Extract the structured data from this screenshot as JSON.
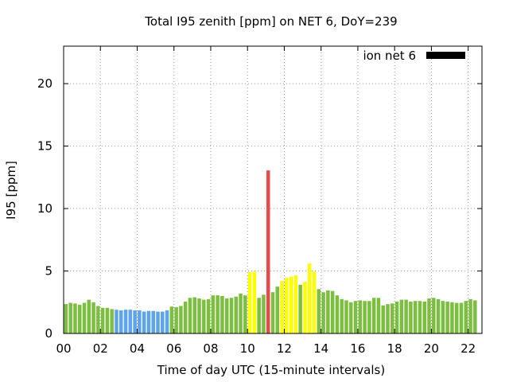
{
  "chart_data": {
    "type": "bar",
    "title": "Total I95 zenith [ppm] on NET 6, DoY=239",
    "xlabel": "Time of day UTC (15-minute intervals)",
    "ylabel": "I95 [ppm]",
    "legend": {
      "label": "ion net 6",
      "color": "#000000",
      "placement": "top-right"
    },
    "xlim": [
      0,
      22.75
    ],
    "ylim": [
      0,
      23
    ],
    "grid": true,
    "x_tick_labels": [
      "00",
      "02",
      "04",
      "06",
      "08",
      "10",
      "12",
      "14",
      "16",
      "18",
      "20",
      "22"
    ],
    "x_tick_values": [
      0,
      2,
      4,
      6,
      8,
      10,
      12,
      14,
      16,
      18,
      20,
      22
    ],
    "y_ticks": [
      0,
      5,
      10,
      15,
      20
    ],
    "bar_interval_hours": 0.25,
    "colors": {
      "green": "#7cbf40",
      "blue": "#5ea4ea",
      "yellow": "#ffff00",
      "red": "#e84a4a"
    },
    "bars": [
      {
        "x": 0.0,
        "y": 2.35,
        "c": "green"
      },
      {
        "x": 0.25,
        "y": 2.45,
        "c": "green"
      },
      {
        "x": 0.5,
        "y": 2.4,
        "c": "green"
      },
      {
        "x": 0.75,
        "y": 2.3,
        "c": "green"
      },
      {
        "x": 1.0,
        "y": 2.45,
        "c": "green"
      },
      {
        "x": 1.25,
        "y": 2.7,
        "c": "green"
      },
      {
        "x": 1.5,
        "y": 2.5,
        "c": "green"
      },
      {
        "x": 1.75,
        "y": 2.2,
        "c": "green"
      },
      {
        "x": 2.0,
        "y": 2.05,
        "c": "green"
      },
      {
        "x": 2.25,
        "y": 2.05,
        "c": "green"
      },
      {
        "x": 2.5,
        "y": 1.95,
        "c": "green"
      },
      {
        "x": 2.75,
        "y": 1.9,
        "c": "blue"
      },
      {
        "x": 3.0,
        "y": 1.85,
        "c": "blue"
      },
      {
        "x": 3.25,
        "y": 1.9,
        "c": "blue"
      },
      {
        "x": 3.5,
        "y": 1.9,
        "c": "blue"
      },
      {
        "x": 3.75,
        "y": 1.85,
        "c": "blue"
      },
      {
        "x": 4.0,
        "y": 1.85,
        "c": "blue"
      },
      {
        "x": 4.25,
        "y": 1.75,
        "c": "blue"
      },
      {
        "x": 4.5,
        "y": 1.8,
        "c": "blue"
      },
      {
        "x": 4.75,
        "y": 1.8,
        "c": "blue"
      },
      {
        "x": 5.0,
        "y": 1.75,
        "c": "blue"
      },
      {
        "x": 5.25,
        "y": 1.75,
        "c": "blue"
      },
      {
        "x": 5.5,
        "y": 1.85,
        "c": "blue"
      },
      {
        "x": 5.75,
        "y": 2.15,
        "c": "green"
      },
      {
        "x": 6.0,
        "y": 2.1,
        "c": "green"
      },
      {
        "x": 6.25,
        "y": 2.2,
        "c": "green"
      },
      {
        "x": 6.5,
        "y": 2.55,
        "c": "green"
      },
      {
        "x": 6.75,
        "y": 2.85,
        "c": "green"
      },
      {
        "x": 7.0,
        "y": 2.9,
        "c": "green"
      },
      {
        "x": 7.25,
        "y": 2.8,
        "c": "green"
      },
      {
        "x": 7.5,
        "y": 2.7,
        "c": "green"
      },
      {
        "x": 7.75,
        "y": 2.75,
        "c": "green"
      },
      {
        "x": 8.0,
        "y": 3.05,
        "c": "green"
      },
      {
        "x": 8.25,
        "y": 3.05,
        "c": "green"
      },
      {
        "x": 8.5,
        "y": 3.0,
        "c": "green"
      },
      {
        "x": 8.75,
        "y": 2.8,
        "c": "green"
      },
      {
        "x": 9.0,
        "y": 2.85,
        "c": "green"
      },
      {
        "x": 9.25,
        "y": 2.95,
        "c": "green"
      },
      {
        "x": 9.5,
        "y": 3.2,
        "c": "green"
      },
      {
        "x": 9.75,
        "y": 3.05,
        "c": "green"
      },
      {
        "x": 10.0,
        "y": 4.9,
        "c": "yellow"
      },
      {
        "x": 10.25,
        "y": 4.95,
        "c": "yellow"
      },
      {
        "x": 10.5,
        "y": 2.85,
        "c": "green"
      },
      {
        "x": 10.75,
        "y": 3.1,
        "c": "green"
      },
      {
        "x": 11.0,
        "y": 13.05,
        "c": "red"
      },
      {
        "x": 11.25,
        "y": 3.3,
        "c": "green"
      },
      {
        "x": 11.5,
        "y": 3.75,
        "c": "green"
      },
      {
        "x": 11.75,
        "y": 4.2,
        "c": "yellow"
      },
      {
        "x": 12.0,
        "y": 4.45,
        "c": "yellow"
      },
      {
        "x": 12.25,
        "y": 4.55,
        "c": "yellow"
      },
      {
        "x": 12.5,
        "y": 4.65,
        "c": "yellow"
      },
      {
        "x": 12.75,
        "y": 3.9,
        "c": "green"
      },
      {
        "x": 13.0,
        "y": 4.15,
        "c": "yellow"
      },
      {
        "x": 13.25,
        "y": 5.6,
        "c": "yellow"
      },
      {
        "x": 13.5,
        "y": 4.95,
        "c": "yellow"
      },
      {
        "x": 13.75,
        "y": 3.55,
        "c": "green"
      },
      {
        "x": 14.0,
        "y": 3.3,
        "c": "green"
      },
      {
        "x": 14.25,
        "y": 3.45,
        "c": "green"
      },
      {
        "x": 14.5,
        "y": 3.4,
        "c": "green"
      },
      {
        "x": 14.75,
        "y": 3.05,
        "c": "green"
      },
      {
        "x": 15.0,
        "y": 2.75,
        "c": "green"
      },
      {
        "x": 15.25,
        "y": 2.65,
        "c": "green"
      },
      {
        "x": 15.5,
        "y": 2.5,
        "c": "green"
      },
      {
        "x": 15.75,
        "y": 2.6,
        "c": "green"
      },
      {
        "x": 16.0,
        "y": 2.65,
        "c": "green"
      },
      {
        "x": 16.25,
        "y": 2.6,
        "c": "green"
      },
      {
        "x": 16.5,
        "y": 2.6,
        "c": "green"
      },
      {
        "x": 16.75,
        "y": 2.85,
        "c": "green"
      },
      {
        "x": 17.0,
        "y": 2.85,
        "c": "green"
      },
      {
        "x": 17.25,
        "y": 2.25,
        "c": "green"
      },
      {
        "x": 17.5,
        "y": 2.35,
        "c": "green"
      },
      {
        "x": 17.75,
        "y": 2.4,
        "c": "green"
      },
      {
        "x": 18.0,
        "y": 2.55,
        "c": "green"
      },
      {
        "x": 18.25,
        "y": 2.7,
        "c": "green"
      },
      {
        "x": 18.5,
        "y": 2.7,
        "c": "green"
      },
      {
        "x": 18.75,
        "y": 2.55,
        "c": "green"
      },
      {
        "x": 19.0,
        "y": 2.6,
        "c": "green"
      },
      {
        "x": 19.25,
        "y": 2.6,
        "c": "green"
      },
      {
        "x": 19.5,
        "y": 2.55,
        "c": "green"
      },
      {
        "x": 19.75,
        "y": 2.8,
        "c": "green"
      },
      {
        "x": 20.0,
        "y": 2.85,
        "c": "green"
      },
      {
        "x": 20.25,
        "y": 2.75,
        "c": "green"
      },
      {
        "x": 20.5,
        "y": 2.6,
        "c": "green"
      },
      {
        "x": 20.75,
        "y": 2.55,
        "c": "green"
      },
      {
        "x": 21.0,
        "y": 2.5,
        "c": "green"
      },
      {
        "x": 21.25,
        "y": 2.45,
        "c": "green"
      },
      {
        "x": 21.5,
        "y": 2.45,
        "c": "green"
      },
      {
        "x": 21.75,
        "y": 2.6,
        "c": "green"
      },
      {
        "x": 22.0,
        "y": 2.75,
        "c": "green"
      },
      {
        "x": 22.25,
        "y": 2.65,
        "c": "green"
      }
    ]
  }
}
